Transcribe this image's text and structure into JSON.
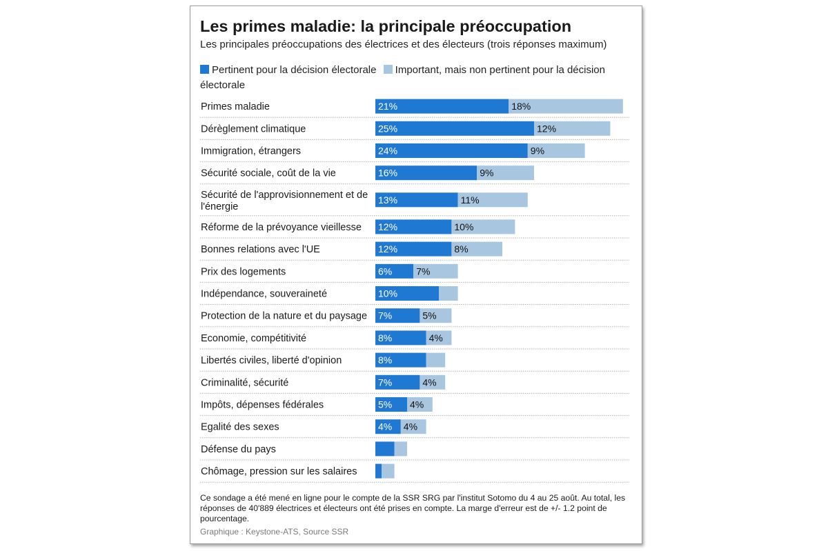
{
  "title": "Les primes maladie: la principale préoccupation",
  "subtitle": "Les principales préoccupations des électrices et des électeurs (trois réponses maximum)",
  "footnote": "Ce sondage a été mené en ligne pour le compte de la SSR SRG par l'institut Sotomo du 4 au 25 août. Au total, les réponses de 40'889 électrices et électeurs ont été prises en compte. La marge d'erreur est de +/- 1.2 point de pourcentage.",
  "source": "Graphique : Keystone-ATS, Source SSR",
  "colors": {
    "primary": "#1f78d1",
    "secondary": "#a8c6e0",
    "separator": "#b5b5b5"
  },
  "chart_data": {
    "type": "bar",
    "orientation": "horizontal",
    "stacked": true,
    "categories": [
      [
        "Primes maladie"
      ],
      [
        "Dérèglement climatique"
      ],
      [
        "Immigration, étrangers"
      ],
      [
        "Sécurité sociale, coût de la vie"
      ],
      [
        "Sécurité de l'approvisionnement et de",
        "l'énergie"
      ],
      [
        "Réforme de la prévoyance vieillesse"
      ],
      [
        "Bonnes relations avec l'UE"
      ],
      [
        "Prix des logements"
      ],
      [
        "Indépendance, souveraineté"
      ],
      [
        "Protection de la nature et du paysage"
      ],
      [
        "Economie, compétitivité"
      ],
      [
        "Libertés civiles, liberté d'opinion"
      ],
      [
        "Criminalité, sécurité"
      ],
      [
        "Impôts, dépenses fédérales"
      ],
      [
        "Egalité des sexes"
      ],
      [
        "Défense du pays"
      ],
      [
        "Chômage, pression sur les salaires"
      ]
    ],
    "series": [
      {
        "name": "Pertinent pour la décision électorale",
        "values": [
          21,
          25,
          24,
          16,
          13,
          12,
          12,
          6,
          10,
          7,
          8,
          8,
          7,
          5,
          4,
          3,
          1
        ],
        "labels": [
          "21%",
          "25%",
          "24%",
          "16%",
          "13%",
          "12%",
          "12%",
          "6%",
          "10%",
          "7%",
          "8%",
          "8%",
          "7%",
          "5%",
          "4%",
          "",
          ""
        ]
      },
      {
        "name": "Important, mais non pertinent pour la décision électorale",
        "values": [
          18,
          12,
          9,
          9,
          11,
          10,
          8,
          7,
          3,
          5,
          4,
          3,
          4,
          4,
          4,
          2,
          2
        ],
        "labels": [
          "18%",
          "12%",
          "9%",
          "9%",
          "11%",
          "10%",
          "8%",
          "7%",
          "",
          "5%",
          "4%",
          "",
          "4%",
          "4%",
          "4%",
          "",
          ""
        ]
      }
    ],
    "xlim": [
      0,
      39
    ],
    "unit": "%",
    "legend": "top"
  }
}
